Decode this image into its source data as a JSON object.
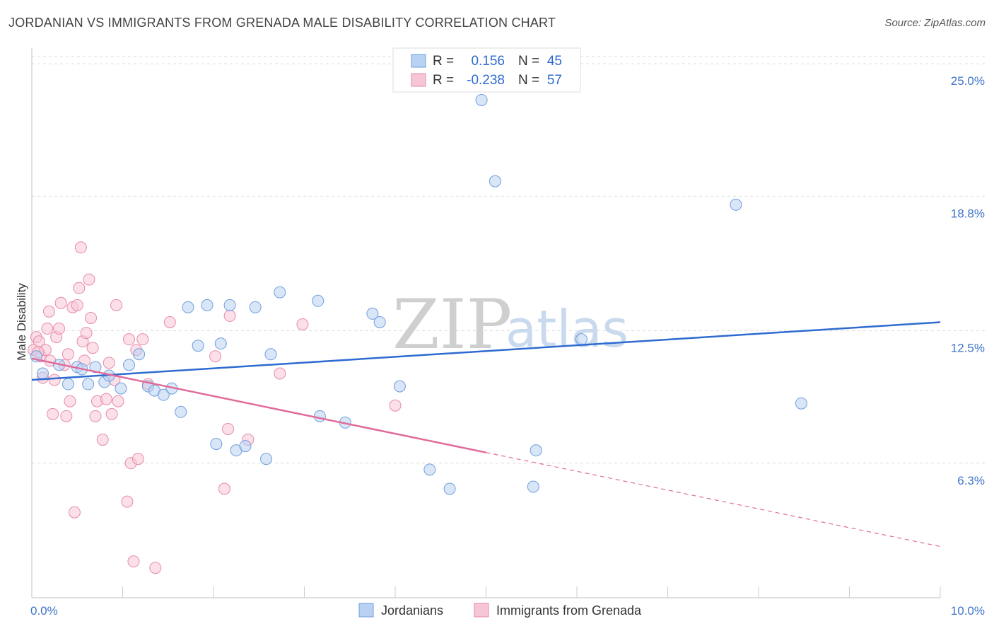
{
  "title": "JORDANIAN VS IMMIGRANTS FROM GRENADA MALE DISABILITY CORRELATION CHART",
  "source": "Source: ZipAtlas.com",
  "watermark": {
    "zip": "ZIP",
    "atlas": "atlas"
  },
  "legend_top": {
    "rows": [
      {
        "r_label": "R =",
        "r_value": "0.156",
        "n_label": "N =",
        "n_value": "45"
      },
      {
        "r_label": "R =",
        "r_value": "-0.238",
        "n_label": "N =",
        "n_value": "57"
      }
    ]
  },
  "colors": {
    "jordanians_fill": "#b9d2f3",
    "jordanians_stroke": "#6f9fdc",
    "jordanians_line": "#2e6bd0",
    "grenada_fill": "#f7c6d6",
    "grenada_stroke": "#e88aab",
    "grenada_line": "#e06b9a",
    "grid": "#dddddd",
    "axis": "#cccccc"
  },
  "chart_data": {
    "type": "scatter",
    "title": "JORDANIAN VS IMMIGRANTS FROM GRENADA MALE DISABILITY CORRELATION CHART",
    "xlabel": "",
    "ylabel": "Male Disability",
    "xlim": [
      0,
      10
    ],
    "ylim": [
      0,
      25.6
    ],
    "x_tick_labels": [
      "0.0%",
      "10.0%"
    ],
    "y_ticks": [
      6.3,
      12.5,
      18.8,
      25.0
    ],
    "y_tick_labels": [
      "6.3%",
      "12.5%",
      "18.8%",
      "25.0%"
    ],
    "grid": true,
    "series": [
      {
        "name": "Jordanians",
        "r": 0.156,
        "n": 45,
        "trend": {
          "x": [
            0,
            10
          ],
          "y": [
            10.2,
            12.9
          ]
        },
        "points": [
          {
            "x": 0.05,
            "y": 11.3
          },
          {
            "x": 0.12,
            "y": 10.5
          },
          {
            "x": 0.4,
            "y": 10.0
          },
          {
            "x": 0.5,
            "y": 10.8
          },
          {
            "x": 0.55,
            "y": 10.7
          },
          {
            "x": 0.62,
            "y": 10.0
          },
          {
            "x": 0.7,
            "y": 10.8
          },
          {
            "x": 0.8,
            "y": 10.1
          },
          {
            "x": 0.85,
            "y": 10.4
          },
          {
            "x": 0.98,
            "y": 9.8
          },
          {
            "x": 1.07,
            "y": 10.9
          },
          {
            "x": 1.18,
            "y": 11.4
          },
          {
            "x": 1.28,
            "y": 9.9
          },
          {
            "x": 1.35,
            "y": 9.7
          },
          {
            "x": 1.45,
            "y": 9.5
          },
          {
            "x": 1.54,
            "y": 9.8
          },
          {
            "x": 1.64,
            "y": 8.7
          },
          {
            "x": 1.72,
            "y": 13.6
          },
          {
            "x": 1.83,
            "y": 11.8
          },
          {
            "x": 1.93,
            "y": 13.7
          },
          {
            "x": 2.03,
            "y": 7.2
          },
          {
            "x": 2.08,
            "y": 11.9
          },
          {
            "x": 2.18,
            "y": 13.7
          },
          {
            "x": 2.25,
            "y": 6.9
          },
          {
            "x": 2.35,
            "y": 7.1
          },
          {
            "x": 2.46,
            "y": 13.6
          },
          {
            "x": 2.58,
            "y": 6.5
          },
          {
            "x": 2.63,
            "y": 11.4
          },
          {
            "x": 2.73,
            "y": 14.3
          },
          {
            "x": 3.15,
            "y": 13.9
          },
          {
            "x": 3.17,
            "y": 8.5
          },
          {
            "x": 3.45,
            "y": 8.2
          },
          {
            "x": 3.75,
            "y": 13.3
          },
          {
            "x": 3.83,
            "y": 12.9
          },
          {
            "x": 4.05,
            "y": 9.9
          },
          {
            "x": 4.38,
            "y": 6.0
          },
          {
            "x": 4.6,
            "y": 5.1
          },
          {
            "x": 4.95,
            "y": 23.3
          },
          {
            "x": 5.1,
            "y": 19.5
          },
          {
            "x": 5.52,
            "y": 5.2
          },
          {
            "x": 5.55,
            "y": 6.9
          },
          {
            "x": 6.05,
            "y": 12.1
          },
          {
            "x": 7.75,
            "y": 18.4
          },
          {
            "x": 8.47,
            "y": 9.1
          },
          {
            "x": 0.3,
            "y": 10.9
          }
        ]
      },
      {
        "name": "Immigrants from Grenada",
        "r": -0.238,
        "n": 57,
        "trend": {
          "x": [
            0,
            5.0
          ],
          "y": [
            11.2,
            6.8
          ]
        },
        "trend_dashed": {
          "x": [
            5.0,
            10
          ],
          "y": [
            6.8,
            2.4
          ]
        },
        "points": [
          {
            "x": 0.02,
            "y": 11.6
          },
          {
            "x": 0.05,
            "y": 12.2
          },
          {
            "x": 0.08,
            "y": 12.0
          },
          {
            "x": 0.1,
            "y": 11.3
          },
          {
            "x": 0.12,
            "y": 10.3
          },
          {
            "x": 0.15,
            "y": 11.6
          },
          {
            "x": 0.17,
            "y": 12.6
          },
          {
            "x": 0.19,
            "y": 13.4
          },
          {
            "x": 0.2,
            "y": 11.1
          },
          {
            "x": 0.23,
            "y": 8.6
          },
          {
            "x": 0.25,
            "y": 10.2
          },
          {
            "x": 0.27,
            "y": 12.2
          },
          {
            "x": 0.3,
            "y": 12.6
          },
          {
            "x": 0.32,
            "y": 13.8
          },
          {
            "x": 0.36,
            "y": 10.9
          },
          {
            "x": 0.38,
            "y": 8.5
          },
          {
            "x": 0.4,
            "y": 11.4
          },
          {
            "x": 0.42,
            "y": 9.2
          },
          {
            "x": 0.45,
            "y": 13.6
          },
          {
            "x": 0.47,
            "y": 4.0
          },
          {
            "x": 0.5,
            "y": 13.7
          },
          {
            "x": 0.52,
            "y": 14.5
          },
          {
            "x": 0.54,
            "y": 16.4
          },
          {
            "x": 0.56,
            "y": 12.0
          },
          {
            "x": 0.58,
            "y": 11.1
          },
          {
            "x": 0.6,
            "y": 12.4
          },
          {
            "x": 0.63,
            "y": 14.9
          },
          {
            "x": 0.65,
            "y": 13.1
          },
          {
            "x": 0.67,
            "y": 11.7
          },
          {
            "x": 0.7,
            "y": 8.5
          },
          {
            "x": 0.72,
            "y": 9.2
          },
          {
            "x": 0.78,
            "y": 7.4
          },
          {
            "x": 0.82,
            "y": 9.3
          },
          {
            "x": 0.85,
            "y": 11.0
          },
          {
            "x": 0.88,
            "y": 8.6
          },
          {
            "x": 0.91,
            "y": 10.2
          },
          {
            "x": 0.93,
            "y": 13.7
          },
          {
            "x": 0.95,
            "y": 9.2
          },
          {
            "x": 1.05,
            "y": 4.5
          },
          {
            "x": 1.07,
            "y": 12.1
          },
          {
            "x": 1.09,
            "y": 6.3
          },
          {
            "x": 1.12,
            "y": 1.7
          },
          {
            "x": 1.15,
            "y": 11.6
          },
          {
            "x": 1.17,
            "y": 6.5
          },
          {
            "x": 1.22,
            "y": 12.1
          },
          {
            "x": 1.28,
            "y": 10.0
          },
          {
            "x": 1.36,
            "y": 1.4
          },
          {
            "x": 1.52,
            "y": 12.9
          },
          {
            "x": 2.02,
            "y": 11.3
          },
          {
            "x": 2.12,
            "y": 5.1
          },
          {
            "x": 2.16,
            "y": 7.9
          },
          {
            "x": 2.18,
            "y": 13.2
          },
          {
            "x": 2.38,
            "y": 7.4
          },
          {
            "x": 2.73,
            "y": 10.5
          },
          {
            "x": 2.98,
            "y": 12.8
          },
          {
            "x": 4.0,
            "y": 9.0
          },
          {
            "x": 0.07,
            "y": 11.5
          }
        ]
      }
    ]
  },
  "bottom_legend": [
    {
      "label": "Jordanians"
    },
    {
      "label": "Immigrants from Grenada"
    }
  ]
}
